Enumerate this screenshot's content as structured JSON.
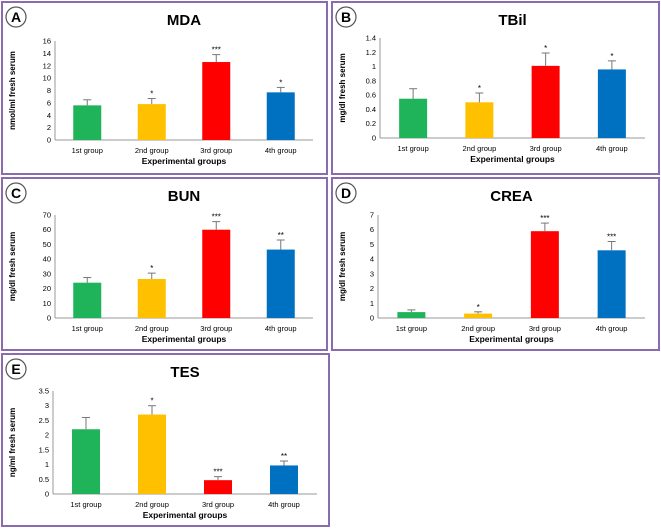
{
  "figure": {
    "categories": [
      "1st group",
      "2nd group",
      "3rd group",
      "4th group"
    ],
    "colors": [
      "#20b45a",
      "#ffc000",
      "#ff0000",
      "#0070c0"
    ],
    "xlabel": "Experimental groups"
  },
  "chart_data": [
    {
      "id": "A",
      "type": "bar",
      "title": "MDA",
      "ylabel": "nmol/ml fresh serum",
      "categories": [
        "1st group",
        "2nd group",
        "3rd group",
        "4th group"
      ],
      "values": [
        5.6,
        5.8,
        12.6,
        7.7
      ],
      "errors": [
        0.9,
        0.9,
        1.2,
        0.8
      ],
      "significance": [
        "",
        "*",
        "***",
        "*"
      ],
      "ylim": [
        0,
        16
      ],
      "yticks": [
        "0",
        "2",
        "4",
        "6",
        "8",
        "10",
        "12",
        "14",
        "16"
      ],
      "xlabel": "Experimental groups"
    },
    {
      "id": "B",
      "type": "bar",
      "title": "TBil",
      "ylabel": "mg/dl fresh serum",
      "categories": [
        "1st group",
        "2nd group",
        "3rd group",
        "4th group"
      ],
      "values": [
        0.55,
        0.5,
        1.01,
        0.96
      ],
      "errors": [
        0.14,
        0.13,
        0.18,
        0.12
      ],
      "significance": [
        "",
        "*",
        "*",
        "*"
      ],
      "ylim": [
        0,
        1.4
      ],
      "yticks": [
        "0",
        "0.2",
        "0.4",
        "0.6",
        "0.8",
        "1",
        "1.2",
        "1.4"
      ],
      "xlabel": "Experimental groups"
    },
    {
      "id": "C",
      "type": "bar",
      "title": "BUN",
      "ylabel": "mg/dl fresh serum",
      "categories": [
        "1st group",
        "2nd group",
        "3rd group",
        "4th group"
      ],
      "values": [
        24,
        26.5,
        60,
        46.5
      ],
      "errors": [
        3.5,
        4,
        5.5,
        6.5
      ],
      "significance": [
        "",
        "*",
        "***",
        "**"
      ],
      "ylim": [
        0,
        70
      ],
      "yticks": [
        "0",
        "10",
        "20",
        "30",
        "40",
        "50",
        "60",
        "70"
      ],
      "xlabel": "Experimental groups"
    },
    {
      "id": "D",
      "type": "bar",
      "title": "CREA",
      "ylabel": "mg/dl fresh serum",
      "categories": [
        "1st group",
        "2nd group",
        "3rd group",
        "4th group"
      ],
      "values": [
        0.4,
        0.3,
        5.9,
        4.6
      ],
      "errors": [
        0.15,
        0.12,
        0.55,
        0.6
      ],
      "significance": [
        "",
        "*",
        "***",
        "***"
      ],
      "ylim": [
        0,
        7
      ],
      "yticks": [
        "0",
        "1",
        "2",
        "3",
        "4",
        "5",
        "6",
        "7"
      ],
      "xlabel": "Experimental groups"
    },
    {
      "id": "E",
      "type": "bar",
      "title": "TES",
      "ylabel": "ng/ml fresh serum",
      "categories": [
        "1st group",
        "2nd group",
        "3rd group",
        "4th group"
      ],
      "values": [
        2.2,
        2.7,
        0.47,
        0.97
      ],
      "errors": [
        0.4,
        0.3,
        0.12,
        0.15
      ],
      "significance": [
        "",
        "*",
        "***",
        "**"
      ],
      "ylim": [
        0,
        3.5
      ],
      "yticks": [
        "0",
        "0.5",
        "1",
        "1.5",
        "2",
        "2.5",
        "3",
        "3.5"
      ],
      "xlabel": "Experimental groups"
    }
  ]
}
